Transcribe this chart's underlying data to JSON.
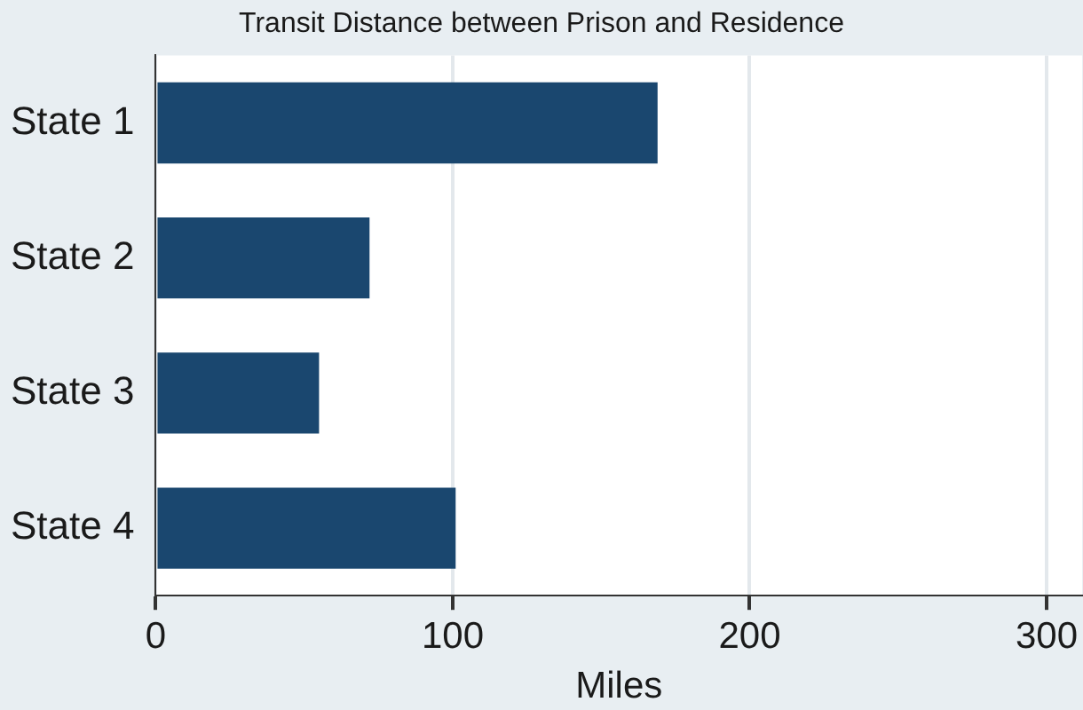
{
  "chart_data": {
    "type": "bar",
    "orientation": "horizontal",
    "title": "Transit Distance between Prison and Residence",
    "xlabel": "Miles",
    "categories": [
      "State 1",
      "State 2",
      "State 3",
      "State 4"
    ],
    "values": [
      169,
      72,
      55,
      101
    ],
    "color": "#1a476f",
    "xlim": [
      0,
      312
    ],
    "xticks": [
      0,
      100,
      200,
      300
    ],
    "grid": "x",
    "legend": false
  }
}
